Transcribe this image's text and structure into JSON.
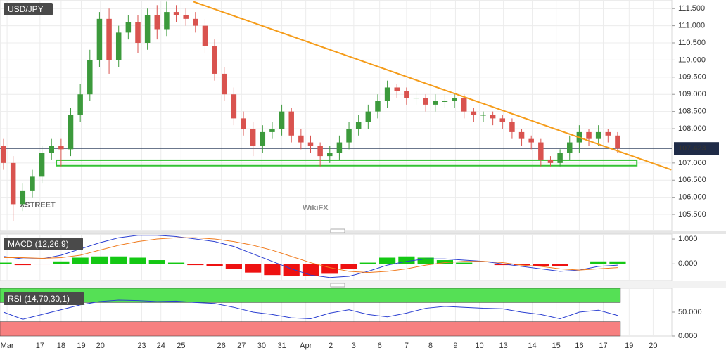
{
  "chart_data": [
    {
      "type": "candlestick",
      "title": "USD/JPY",
      "open": [
        107.5,
        107.0,
        105.8,
        106.2,
        106.6,
        107.3,
        107.5,
        107.4,
        108.4,
        109.0,
        110.0,
        111.2,
        110.0,
        110.8,
        111.1,
        110.5,
        111.3,
        110.9,
        111.4,
        111.3,
        111.2,
        111.0,
        110.4,
        109.6,
        109.0,
        108.3,
        108.0,
        107.5,
        107.9,
        108.0,
        108.5,
        107.8,
        107.6,
        107.5,
        107.2,
        107.3,
        107.6,
        108.0,
        108.2,
        108.5,
        108.8,
        109.2,
        109.1,
        108.9,
        108.9,
        108.7,
        108.8,
        108.8,
        108.9,
        108.5,
        108.4,
        108.4,
        108.3,
        108.2,
        107.9,
        107.7,
        107.6,
        107.1,
        107.0,
        107.3,
        107.6,
        107.9,
        107.7,
        107.9,
        107.8
      ],
      "high": [
        107.7,
        107.2,
        106.4,
        106.8,
        107.5,
        107.7,
        107.7,
        108.6,
        109.3,
        110.3,
        111.4,
        111.5,
        111.0,
        111.3,
        111.3,
        111.5,
        111.6,
        111.7,
        111.6,
        111.5,
        111.4,
        111.2,
        110.6,
        109.8,
        109.2,
        108.5,
        108.2,
        108.1,
        108.2,
        108.7,
        108.6,
        108.0,
        107.8,
        107.6,
        107.5,
        107.8,
        108.2,
        108.4,
        108.7,
        109.0,
        109.4,
        109.3,
        109.2,
        109.1,
        109.0,
        109.0,
        109.0,
        109.0,
        109.0,
        108.6,
        108.5,
        108.5,
        108.4,
        108.3,
        108.0,
        107.8,
        107.7,
        107.2,
        107.4,
        107.8,
        108.1,
        108.0,
        108.1,
        108.0,
        107.9
      ],
      "low": [
        106.8,
        105.3,
        105.6,
        106.0,
        106.4,
        107.1,
        106.9,
        107.2,
        108.2,
        108.8,
        109.8,
        109.6,
        109.8,
        110.6,
        110.2,
        110.3,
        110.6,
        110.7,
        111.1,
        111.0,
        110.8,
        110.2,
        109.4,
        108.8,
        108.1,
        107.8,
        107.2,
        107.3,
        107.7,
        107.8,
        107.6,
        107.4,
        107.3,
        106.9,
        107.0,
        107.1,
        107.4,
        107.8,
        108.0,
        108.3,
        108.6,
        108.9,
        108.7,
        108.7,
        108.5,
        108.5,
        108.6,
        108.6,
        108.3,
        108.2,
        108.2,
        108.1,
        108.0,
        107.7,
        107.5,
        107.4,
        106.9,
        106.9,
        106.9,
        107.1,
        107.3,
        107.5,
        107.5,
        107.6,
        107.3
      ],
      "close": [
        107.0,
        105.8,
        106.2,
        106.6,
        107.3,
        107.5,
        107.4,
        108.4,
        109.0,
        110.0,
        111.2,
        110.0,
        110.8,
        111.1,
        110.5,
        111.3,
        110.9,
        111.4,
        111.3,
        111.2,
        111.0,
        110.4,
        109.6,
        109.0,
        108.3,
        108.0,
        107.5,
        107.9,
        108.0,
        108.5,
        107.8,
        107.6,
        107.5,
        107.2,
        107.3,
        107.6,
        108.0,
        108.2,
        108.5,
        108.8,
        109.2,
        109.1,
        108.9,
        108.9,
        108.7,
        108.8,
        108.8,
        108.9,
        108.5,
        108.4,
        108.4,
        108.3,
        108.2,
        107.9,
        107.7,
        107.6,
        107.1,
        107.0,
        107.3,
        107.6,
        107.9,
        107.7,
        107.9,
        107.8,
        107.42
      ],
      "up_color": "#3c9a3c",
      "down_color": "#d9534f",
      "trendline": {
        "start": [
          19.8,
          111.7
        ],
        "end": [
          69.6,
          106.8
        ],
        "color": "#f59c1a"
      },
      "support_zone": {
        "from": 5.5,
        "to": 66,
        "low": 106.92,
        "high": 107.08,
        "color": "#35c335"
      },
      "last_price": 107.423,
      "xlim": [
        -0.37,
        69.65
      ],
      "ylim": [
        105.03,
        111.75
      ],
      "yticks": [
        {
          "value": 105.5,
          "label": "105.500"
        },
        {
          "value": 106,
          "label": "106.000"
        },
        {
          "value": 106.5,
          "label": "106.500"
        },
        {
          "value": 107,
          "label": "107.000"
        },
        {
          "value": 107.5,
          "label": "107.500"
        },
        {
          "value": 108,
          "label": "108.000"
        },
        {
          "value": 108.5,
          "label": "108.500"
        },
        {
          "value": 109,
          "label": "109.000"
        },
        {
          "value": 109.5,
          "label": "109.500"
        },
        {
          "value": 110,
          "label": "110.000"
        },
        {
          "value": 110.5,
          "label": "110.500"
        },
        {
          "value": 111,
          "label": "111.000"
        },
        {
          "value": 111.5,
          "label": "111.500"
        }
      ],
      "xticks": [
        {
          "value": 0.37,
          "label": "Mar"
        },
        {
          "value": 3.8,
          "label": "17"
        },
        {
          "value": 6.0,
          "label": "18"
        },
        {
          "value": 8.1,
          "label": "19"
        },
        {
          "value": 10.1,
          "label": "20"
        },
        {
          "value": 14.4,
          "label": "23"
        },
        {
          "value": 16.4,
          "label": "24"
        },
        {
          "value": 18.5,
          "label": "25"
        },
        {
          "value": 22.7,
          "label": "26"
        },
        {
          "value": 24.8,
          "label": "27"
        },
        {
          "value": 26.9,
          "label": "30"
        },
        {
          "value": 29.0,
          "label": "31"
        },
        {
          "value": 31.5,
          "label": "Apr"
        },
        {
          "value": 34.1,
          "label": "2"
        },
        {
          "value": 36.5,
          "label": "3"
        },
        {
          "value": 39.2,
          "label": "6"
        },
        {
          "value": 42.0,
          "label": "7"
        },
        {
          "value": 44.5,
          "label": "8"
        },
        {
          "value": 47.1,
          "label": "9"
        },
        {
          "value": 49.6,
          "label": "10"
        },
        {
          "value": 52.1,
          "label": "13"
        },
        {
          "value": 55.1,
          "label": "14"
        },
        {
          "value": 57.6,
          "label": "15"
        },
        {
          "value": 60.0,
          "label": "16"
        },
        {
          "value": 62.5,
          "label": "17"
        },
        {
          "value": 65.2,
          "label": "19"
        },
        {
          "value": 67.7,
          "label": "20"
        }
      ],
      "grid": true,
      "watermarks": [
        "XSTREET",
        "WikiFX"
      ]
    },
    {
      "type": "macd",
      "title": "MACD (12,26,9)",
      "x": [
        0,
        2,
        4,
        6,
        8,
        10,
        12,
        14,
        16,
        18,
        20,
        22,
        24,
        26,
        28,
        30,
        32,
        34,
        36,
        38,
        40,
        42,
        44,
        46,
        48,
        50,
        52,
        54,
        56,
        58,
        60,
        62,
        64
      ],
      "series": [
        {
          "color": "#2b3fd1",
          "values": [
            0.3,
            0.2,
            0.2,
            0.35,
            0.6,
            0.85,
            1.05,
            1.15,
            1.15,
            1.1,
            1.0,
            0.9,
            0.7,
            0.4,
            0.1,
            -0.2,
            -0.45,
            -0.55,
            -0.5,
            -0.3,
            -0.05,
            0.1,
            0.2,
            0.2,
            0.15,
            0.1,
            0.0,
            -0.1,
            -0.2,
            -0.3,
            -0.25,
            -0.1,
            -0.05
          ]
        },
        {
          "color": "#f07b1e",
          "values": [
            0.25,
            0.25,
            0.22,
            0.25,
            0.35,
            0.55,
            0.75,
            0.9,
            1.0,
            1.05,
            1.05,
            1.0,
            0.9,
            0.75,
            0.55,
            0.3,
            0.05,
            -0.15,
            -0.3,
            -0.35,
            -0.3,
            -0.2,
            -0.05,
            0.05,
            0.1,
            0.1,
            0.05,
            -0.05,
            -0.1,
            -0.2,
            -0.25,
            -0.2,
            -0.15
          ]
        }
      ],
      "histogram": {
        "values": [
          0.05,
          -0.05,
          -0.02,
          0.1,
          0.25,
          0.3,
          0.3,
          0.25,
          0.15,
          0.05,
          -0.05,
          -0.1,
          -0.2,
          -0.35,
          -0.45,
          -0.5,
          -0.5,
          -0.4,
          -0.2,
          0.05,
          0.25,
          0.3,
          0.25,
          0.15,
          0.05,
          0.0,
          -0.05,
          -0.05,
          -0.1,
          -0.1,
          0.0,
          0.1,
          0.1
        ],
        "up_color": "#14c814",
        "down_color": "#ee1111"
      },
      "ylim": [
        -0.7,
        1.2
      ],
      "yticks": [
        {
          "value": 0,
          "label": "0.000"
        },
        {
          "value": 1,
          "label": "1.000"
        }
      ]
    },
    {
      "type": "rsi",
      "title": "RSI (14,70,30,1)",
      "x": [
        0,
        2,
        4,
        6,
        8,
        10,
        12,
        14,
        16,
        18,
        20,
        22,
        24,
        26,
        28,
        30,
        32,
        34,
        36,
        38,
        40,
        42,
        44,
        46,
        48,
        50,
        52,
        54,
        56,
        58,
        60,
        62,
        64
      ],
      "series": [
        {
          "color": "#2b3fd1",
          "values": [
            50,
            35,
            45,
            55,
            65,
            72,
            75,
            74,
            72,
            73,
            70,
            68,
            60,
            50,
            45,
            38,
            36,
            48,
            55,
            45,
            40,
            48,
            58,
            62,
            60,
            58,
            57,
            50,
            45,
            36,
            50,
            54,
            43
          ]
        }
      ],
      "bands": [
        {
          "from": 70,
          "to": 100,
          "color": "#55e055"
        },
        {
          "from": 0,
          "to": 30,
          "color": "#f78080"
        }
      ],
      "ylim": [
        0,
        100
      ],
      "yticks": [
        {
          "value": 0,
          "label": "0.000"
        },
        {
          "value": 50,
          "label": "50.000"
        }
      ]
    }
  ]
}
